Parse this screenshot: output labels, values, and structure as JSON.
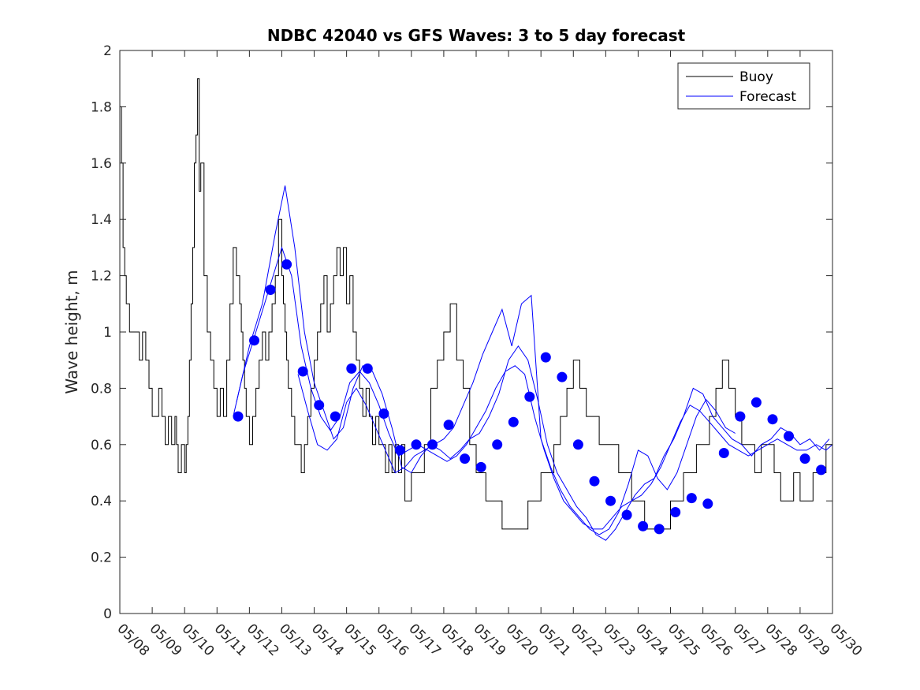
{
  "chart_data": {
    "type": "line",
    "title": "NDBC 42040 vs GFS Waves: 3 to 5 day forecast",
    "xlabel": "",
    "ylabel": "Wave height, m",
    "xlim": [
      "05/08",
      "05/30"
    ],
    "ylim": [
      0,
      2
    ],
    "yticks": [
      0,
      0.2,
      0.4,
      0.6,
      0.8,
      1,
      1.2,
      1.4,
      1.6,
      1.8,
      2
    ],
    "yticklabels": [
      "0",
      "0.2",
      "0.4",
      "0.6",
      "0.8",
      "1",
      "1.2",
      "1.4",
      "1.6",
      "1.8",
      "2"
    ],
    "xticklabels": [
      "05/08",
      "05/09",
      "05/10",
      "05/11",
      "05/12",
      "05/13",
      "05/14",
      "05/15",
      "05/16",
      "05/17",
      "05/18",
      "05/19",
      "05/20",
      "05/21",
      "05/22",
      "05/23",
      "05/24",
      "05/25",
      "05/26",
      "05/27",
      "05/28",
      "05/29",
      "05/30"
    ],
    "grid": false,
    "legend": {
      "position": "top-right",
      "entries": [
        "Buoy",
        "Forecast"
      ]
    },
    "colors": {
      "buoy": "#000000",
      "forecast": "#0000ff",
      "marker": "#0000ff"
    },
    "series": [
      {
        "name": "Buoy",
        "style": "step",
        "x": [
          0,
          0.05,
          0.1,
          0.15,
          0.2,
          0.3,
          0.4,
          0.6,
          0.7,
          0.8,
          0.9,
          1.0,
          1.1,
          1.2,
          1.3,
          1.4,
          1.5,
          1.6,
          1.7,
          1.75,
          1.8,
          1.9,
          2.0,
          2.05,
          2.1,
          2.15,
          2.2,
          2.25,
          2.3,
          2.35,
          2.4,
          2.45,
          2.5,
          2.6,
          2.7,
          2.8,
          2.9,
          3.0,
          3.1,
          3.2,
          3.3,
          3.4,
          3.5,
          3.6,
          3.7,
          3.75,
          3.8,
          3.85,
          3.9,
          4.0,
          4.1,
          4.2,
          4.3,
          4.4,
          4.5,
          4.6,
          4.7,
          4.8,
          4.9,
          5.0,
          5.05,
          5.1,
          5.15,
          5.2,
          5.3,
          5.4,
          5.5,
          5.6,
          5.7,
          5.8,
          5.9,
          6.0,
          6.1,
          6.2,
          6.3,
          6.4,
          6.5,
          6.6,
          6.7,
          6.8,
          6.9,
          7.0,
          7.1,
          7.2,
          7.3,
          7.4,
          7.5,
          7.6,
          7.7,
          7.8,
          7.9,
          8.0,
          8.1,
          8.2,
          8.3,
          8.4,
          8.5,
          8.6,
          8.7,
          8.8,
          8.9,
          9.0,
          9.2,
          9.4,
          9.6,
          9.8,
          10.0,
          10.2,
          10.4,
          10.6,
          10.8,
          11.0,
          11.3,
          11.6,
          11.8,
          12.0,
          12.2,
          12.4,
          12.6,
          12.8,
          13.0,
          13.2,
          13.4,
          13.6,
          13.8,
          14.0,
          14.2,
          14.4,
          14.6,
          14.8,
          15.0,
          15.2,
          15.4,
          15.6,
          15.8,
          16.0,
          16.2,
          16.4,
          16.6,
          16.8,
          17.0,
          17.2,
          17.4,
          17.6,
          17.8,
          18.0,
          18.2,
          18.4,
          18.6,
          18.8,
          19.0,
          19.2,
          19.4,
          19.6,
          19.8,
          20.0,
          20.2,
          20.4,
          20.6,
          20.8,
          21.0,
          21.2,
          21.4,
          21.6,
          21.8,
          22.0
        ],
        "y": [
          1.8,
          1.6,
          1.3,
          1.2,
          1.1,
          1.0,
          1.0,
          0.9,
          1.0,
          0.9,
          0.8,
          0.7,
          0.7,
          0.8,
          0.7,
          0.6,
          0.7,
          0.6,
          0.7,
          0.6,
          0.5,
          0.6,
          0.5,
          0.6,
          0.7,
          0.9,
          1.1,
          1.3,
          1.6,
          1.7,
          1.9,
          1.5,
          1.6,
          1.2,
          1.0,
          0.9,
          0.8,
          0.7,
          0.8,
          0.7,
          0.9,
          1.1,
          1.3,
          1.2,
          1.1,
          1.0,
          0.9,
          0.8,
          0.7,
          0.6,
          0.7,
          0.8,
          0.9,
          1.0,
          0.9,
          1.0,
          1.1,
          1.2,
          1.4,
          1.2,
          1.1,
          1.0,
          0.9,
          0.8,
          0.7,
          0.6,
          0.6,
          0.5,
          0.6,
          0.7,
          0.8,
          0.9,
          1.0,
          1.1,
          1.2,
          1.0,
          1.1,
          1.2,
          1.3,
          1.2,
          1.3,
          1.1,
          1.2,
          1.0,
          0.9,
          0.8,
          0.7,
          0.8,
          0.7,
          0.6,
          0.7,
          0.6,
          0.6,
          0.5,
          0.6,
          0.5,
          0.6,
          0.5,
          0.6,
          0.4,
          0.4,
          0.5,
          0.5,
          0.6,
          0.8,
          0.9,
          1.0,
          1.1,
          0.9,
          0.8,
          0.6,
          0.5,
          0.4,
          0.4,
          0.3,
          0.3,
          0.3,
          0.3,
          0.4,
          0.4,
          0.5,
          0.5,
          0.6,
          0.7,
          0.8,
          0.9,
          0.8,
          0.7,
          0.7,
          0.6,
          0.6,
          0.6,
          0.5,
          0.5,
          0.4,
          0.4,
          0.3,
          0.3,
          0.3,
          0.3,
          0.4,
          0.4,
          0.5,
          0.5,
          0.6,
          0.6,
          0.7,
          0.8,
          0.9,
          0.8,
          0.7,
          0.6,
          0.6,
          0.5,
          0.6,
          0.6,
          0.5,
          0.4,
          0.4,
          0.5,
          0.4,
          0.4,
          0.5,
          0.5,
          0.6,
          0.6
        ]
      },
      {
        "name": "Forecast",
        "style": "line",
        "x": [
          3.5,
          3.8,
          4.2,
          4.6,
          5.0,
          5.3,
          5.6,
          5.9,
          6.2,
          6.5,
          6.8,
          7.1,
          7.4,
          7.7,
          8.0,
          8.3,
          8.6,
          8.9,
          9.2,
          9.5,
          9.8,
          10.1,
          10.4,
          10.7,
          11.0,
          11.3,
          11.6,
          11.9,
          12.2,
          12.5,
          12.8,
          13.1,
          13.4,
          13.7,
          14.0,
          14.3,
          14.6,
          14.9,
          15.2,
          15.5,
          15.8,
          16.1,
          16.4,
          16.7,
          17.0,
          17.3,
          17.6,
          17.9,
          18.2,
          18.5,
          18.8,
          19.1,
          19.4,
          19.7,
          20.0,
          20.3,
          20.6,
          20.9,
          21.2,
          21.5,
          21.8,
          22.0
        ],
        "y": [
          0.7,
          0.85,
          1.0,
          1.15,
          1.3,
          1.2,
          0.95,
          0.8,
          0.7,
          0.65,
          0.7,
          0.82,
          0.86,
          0.82,
          0.74,
          0.64,
          0.56,
          0.58,
          0.6,
          0.58,
          0.56,
          0.54,
          0.56,
          0.6,
          0.66,
          0.72,
          0.8,
          0.86,
          0.88,
          0.85,
          0.7,
          0.58,
          0.48,
          0.4,
          0.36,
          0.32,
          0.3,
          0.3,
          0.34,
          0.38,
          0.4,
          0.42,
          0.46,
          0.52,
          0.6,
          0.68,
          0.74,
          0.72,
          0.68,
          0.64,
          0.6,
          0.58,
          0.56,
          0.58,
          0.6,
          0.62,
          0.6,
          0.58,
          0.58,
          0.6,
          0.58,
          0.6
        ]
      },
      {
        "name": "",
        "style": "line",
        "x": [
          3.6,
          4.0,
          4.4,
          4.8,
          5.1,
          5.4,
          5.7,
          6.0,
          6.3,
          6.6,
          6.9,
          7.2,
          7.5,
          7.8,
          8.1,
          8.4,
          8.7,
          9.0,
          9.3,
          9.6,
          9.9,
          10.2,
          10.5,
          10.8,
          11.1,
          11.4,
          11.7,
          12.0,
          12.3,
          12.6,
          12.9,
          13.2,
          13.5,
          13.8,
          14.1,
          14.4,
          14.7,
          15.0,
          15.3,
          15.6,
          15.9,
          16.2,
          16.5,
          16.8,
          17.1,
          17.4,
          17.7,
          18.0,
          18.3,
          18.6,
          18.9,
          19.2,
          19.5,
          19.8,
          20.1,
          20.4,
          20.7,
          21.0,
          21.3,
          21.6,
          21.9
        ],
        "y": [
          0.75,
          0.95,
          1.1,
          1.35,
          1.52,
          1.3,
          1.0,
          0.82,
          0.72,
          0.62,
          0.66,
          0.8,
          0.88,
          0.86,
          0.78,
          0.66,
          0.52,
          0.5,
          0.56,
          0.6,
          0.58,
          0.55,
          0.58,
          0.62,
          0.64,
          0.7,
          0.78,
          0.9,
          0.95,
          0.9,
          0.76,
          0.6,
          0.5,
          0.44,
          0.38,
          0.34,
          0.28,
          0.26,
          0.3,
          0.36,
          0.42,
          0.46,
          0.48,
          0.56,
          0.62,
          0.7,
          0.8,
          0.78,
          0.7,
          0.66,
          0.62,
          0.6,
          0.56,
          0.6,
          0.62,
          0.66,
          0.64,
          0.6,
          0.62,
          0.58,
          0.62
        ]
      },
      {
        "name": "",
        "style": "line",
        "x": [
          5.5,
          5.8,
          6.1,
          6.4,
          6.7,
          7.0,
          7.3,
          7.6,
          7.9,
          8.2,
          8.5,
          8.8,
          9.1,
          9.4,
          9.7,
          10.0,
          10.3,
          10.6,
          10.9,
          11.2,
          11.5,
          11.8,
          12.1,
          12.4,
          12.7,
          13.0,
          13.3,
          13.6,
          13.9,
          14.2,
          14.5,
          14.8,
          15.1,
          15.4,
          15.7,
          16.0,
          16.3,
          16.6,
          16.9,
          17.2,
          17.5,
          17.8,
          18.1,
          18.4,
          18.7,
          19.0
        ],
        "y": [
          0.85,
          0.72,
          0.6,
          0.58,
          0.62,
          0.75,
          0.8,
          0.74,
          0.66,
          0.58,
          0.5,
          0.52,
          0.56,
          0.58,
          0.6,
          0.62,
          0.66,
          0.74,
          0.82,
          0.92,
          1.0,
          1.08,
          0.95,
          1.1,
          1.13,
          0.62,
          0.52,
          0.44,
          0.38,
          0.34,
          0.3,
          0.28,
          0.3,
          0.36,
          0.46,
          0.58,
          0.56,
          0.48,
          0.44,
          0.5,
          0.6,
          0.7,
          0.76,
          0.72,
          0.66,
          0.64
        ]
      }
    ],
    "markers": {
      "name": "",
      "x": [
        3.65,
        4.15,
        4.65,
        5.15,
        5.65,
        6.15,
        6.65,
        7.15,
        7.65,
        8.15,
        8.65,
        9.15,
        9.65,
        10.15,
        10.65,
        11.15,
        11.65,
        12.15,
        12.65,
        13.15,
        13.65,
        14.15,
        14.65,
        15.15,
        15.65,
        16.15,
        16.65,
        17.15,
        17.65,
        18.15,
        18.65,
        19.15,
        19.65,
        20.15,
        20.65,
        21.15,
        21.65
      ],
      "y": [
        0.7,
        0.97,
        1.15,
        1.24,
        0.86,
        0.74,
        0.7,
        0.87,
        0.87,
        0.71,
        0.58,
        0.6,
        0.6,
        0.67,
        0.55,
        0.52,
        0.6,
        0.68,
        0.77,
        0.91,
        0.84,
        0.6,
        0.47,
        0.4,
        0.35,
        0.31,
        0.3,
        0.36,
        0.41,
        0.39,
        0.57,
        0.7,
        0.75,
        0.69,
        0.63,
        0.55,
        0.51
      ]
    }
  }
}
